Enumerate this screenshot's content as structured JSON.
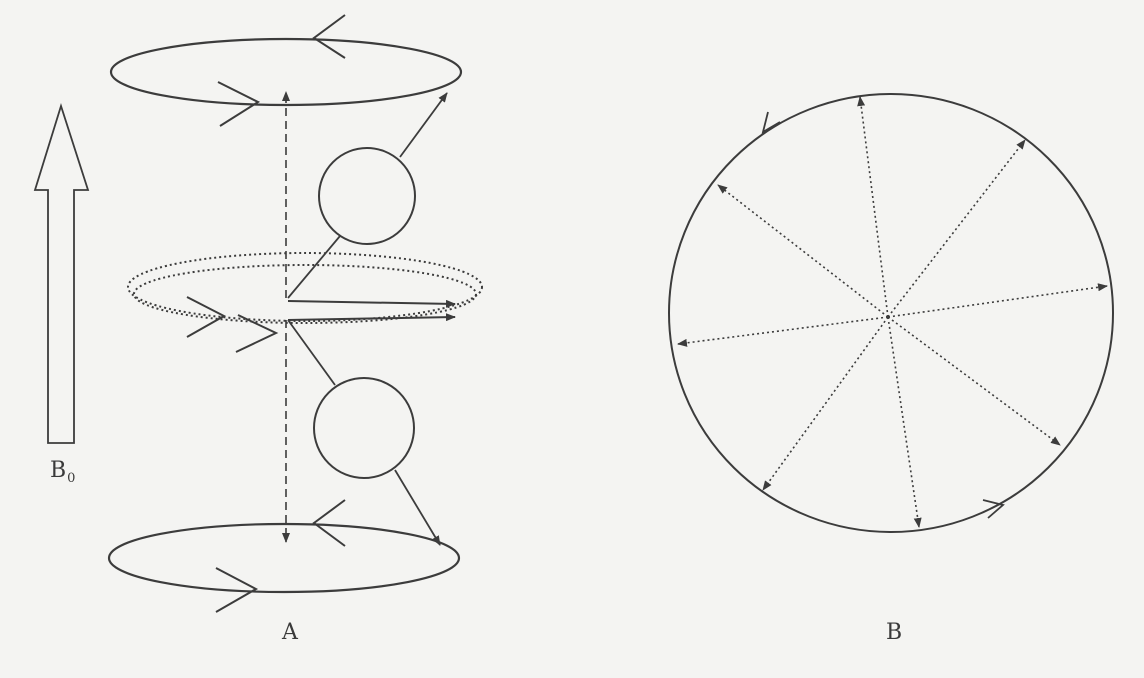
{
  "figure": {
    "field_label": "B",
    "field_subscript": "0",
    "panel_a_label": "A",
    "panel_b_label": "B"
  },
  "colors": {
    "ink": "#3c3c3c",
    "background": "#f4f4f2"
  }
}
